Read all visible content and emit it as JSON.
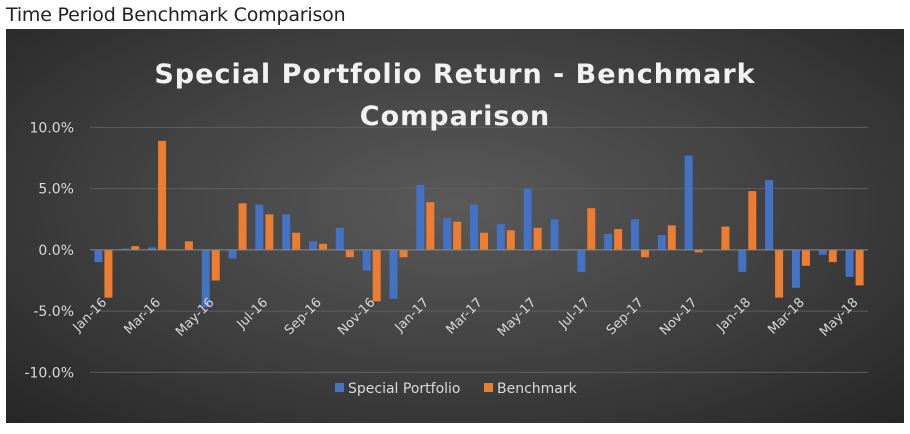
{
  "page": {
    "heading": "Time Period Benchmark Comparison"
  },
  "chart_data": {
    "type": "bar",
    "title": "Special Portfolio Return - Benchmark Comparison",
    "title_lines": [
      "Special Portfolio Return - Benchmark",
      "Comparison"
    ],
    "xlabel": "",
    "ylabel": "",
    "ylim": [
      -0.125,
      0.115
    ],
    "yticks": [
      0.1,
      0.05,
      0.0,
      -0.05,
      -0.1
    ],
    "ytick_labels": [
      "10.0%",
      "5.0%",
      "0.0%",
      "-5.0%",
      "-10.0%"
    ],
    "grid": true,
    "legend_position": "bottom",
    "categories": [
      "Jan-16",
      "Feb-16",
      "Mar-16",
      "Apr-16",
      "May-16",
      "Jun-16",
      "Jul-16",
      "Aug-16",
      "Sep-16",
      "Oct-16",
      "Nov-16",
      "Dec-16",
      "Jan-17",
      "Feb-17",
      "Mar-17",
      "Apr-17",
      "May-17",
      "Jun-17",
      "Jul-17",
      "Aug-17",
      "Sep-17",
      "Oct-17",
      "Nov-17",
      "Dec-17",
      "Jan-18",
      "Feb-18",
      "Mar-18",
      "Apr-18",
      "May-18"
    ],
    "x_tick_labels": [
      "Jan-16",
      "",
      "Mar-16",
      "",
      "May-16",
      "",
      "Jul-16",
      "",
      "Sep-16",
      "",
      "Nov-16",
      "",
      "Jan-17",
      "",
      "Mar-17",
      "",
      "May-17",
      "",
      "Jul-17",
      "",
      "Sep-17",
      "",
      "Nov-17",
      "",
      "Jan-18",
      "",
      "Mar-18",
      "",
      "May-18"
    ],
    "series": [
      {
        "name": "Special Portfolio",
        "color": "#4472c4",
        "values": [
          -0.01,
          0.001,
          0.002,
          0.0,
          -0.047,
          -0.007,
          0.037,
          0.029,
          0.007,
          0.018,
          -0.017,
          -0.04,
          0.053,
          0.026,
          0.037,
          0.021,
          0.05,
          0.025,
          -0.018,
          0.013,
          0.025,
          0.012,
          0.077,
          0.0,
          -0.018,
          0.057,
          -0.031,
          -0.004,
          -0.022
        ]
      },
      {
        "name": "Benchmark",
        "color": "#ed7d31",
        "values": [
          -0.039,
          0.003,
          0.089,
          0.007,
          -0.025,
          0.038,
          0.029,
          0.014,
          0.005,
          -0.006,
          -0.042,
          -0.006,
          0.039,
          0.023,
          0.014,
          0.016,
          0.018,
          0.0,
          0.034,
          0.017,
          -0.006,
          0.02,
          -0.002,
          0.019,
          0.048,
          -0.039,
          -0.013,
          -0.01,
          -0.029
        ]
      }
    ]
  }
}
